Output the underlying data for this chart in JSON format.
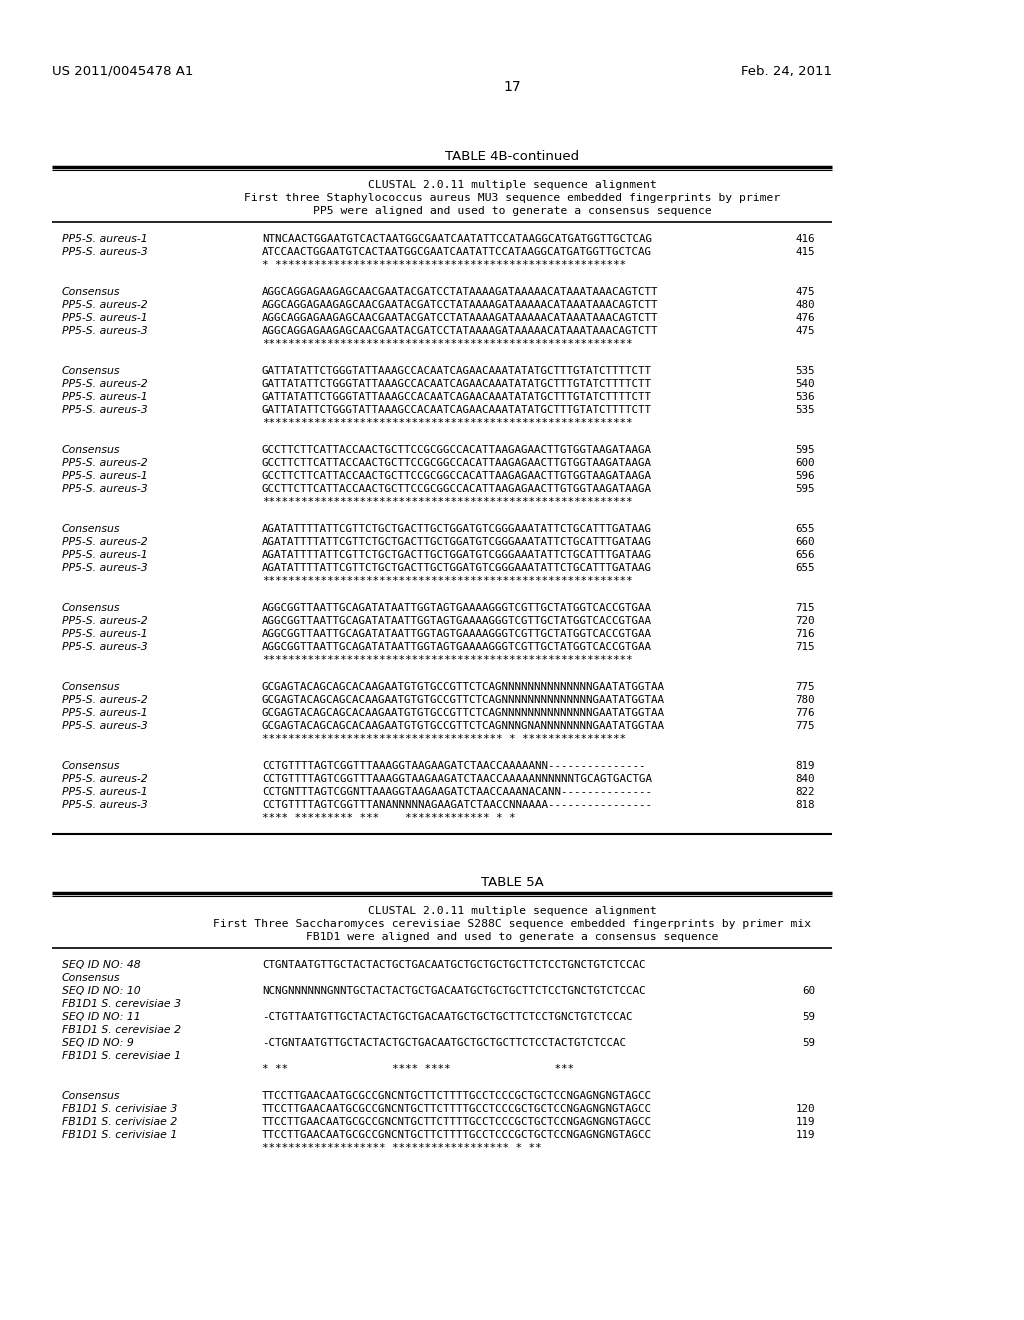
{
  "background_color": "#ffffff",
  "patent_left": "US 2011/0045478 A1",
  "patent_right": "Feb. 24, 2011",
  "page_number": "17",
  "table4b_title": "TABLE 4B-continued",
  "table4b_intro": [
    "CLUSTAL 2.0.11 multiple sequence alignment",
    "First three Staphylococcus aureus MU3 sequence embedded fingerprints by primer",
    "PP5 were aligned and used to generate a consensus sequence"
  ],
  "table5a_title": "TABLE 5A",
  "table5a_intro": [
    "CLUSTAL 2.0.11 multiple sequence alignment",
    "First Three Saccharomyces cerevisiae S288C sequence embedded fingerprints by primer mix",
    "FB1D1 were aligned and used to generate a consensus sequence"
  ],
  "table4b_blocks": [
    [
      [
        "PP5-S. aureus-1",
        "NTNCAACTGGAATGTCACTAATGGCGAATCAATATTCCATAAGGCATGATGGTTGCTCAG",
        "416"
      ],
      [
        "PP5-S. aureus-3",
        "ATCCAACTGGAATGTCACTAATGGCGAATCAATATTCCATAAGGCATGATGGTTGCTCAG",
        "415"
      ],
      [
        "",
        "* ******************************************************",
        ""
      ]
    ],
    [
      [
        "Consensus",
        "AGGCAGGAGAAGAGCAACGAATACGATCCTATAAAAGATAAAAACATAAATAAACAGTCTT",
        "475"
      ],
      [
        "PP5-S. aureus-2",
        "AGGCAGGAGAAGAGCAACGAATACGATCCTATAAAAGATAAAAACATAAATAAACAGTCTT",
        "480"
      ],
      [
        "PP5-S. aureus-1",
        "AGGCAGGAGAAGAGCAACGAATACGATCCTATAAAAGATAAAAACATAAATAAACAGTCTT",
        "476"
      ],
      [
        "PP5-S. aureus-3",
        "AGGCAGGAGAAGAGCAACGAATACGATCCTATAAAAGATAAAAACATAAATAAACAGTCTT",
        "475"
      ],
      [
        "",
        "*********************************************************",
        ""
      ]
    ],
    [
      [
        "Consensus",
        "GATTATATTCTGGGTATTAAAGCCACAATCAGAACAAATATATGCTTTGTATCTTTTCTT",
        "535"
      ],
      [
        "PP5-S. aureus-2",
        "GATTATATTCTGGGTATTAAAGCCACAATCAGAACAAATATATGCTTTGTATCTTTTCTT",
        "540"
      ],
      [
        "PP5-S. aureus-1",
        "GATTATATTCTGGGTATTAAAGCCACAATCAGAACAAATATATGCTTTGTATCTTTTCTT",
        "536"
      ],
      [
        "PP5-S. aureus-3",
        "GATTATATTCTGGGTATTAAAGCCACAATCAGAACAAATATATGCTTTGTATCTTTTCTT",
        "535"
      ],
      [
        "",
        "*********************************************************",
        ""
      ]
    ],
    [
      [
        "Consensus",
        "GCCTTCTTCATTACCAACTGCTTCCGCGGCCACATTAAGAGAACTTGTGGTAAGATAAGA",
        "595"
      ],
      [
        "PP5-S. aureus-2",
        "GCCTTCTTCATTACCAACTGCTTCCGCGGCCACATTAAGAGAACTTGTGGTAAGATAAGA",
        "600"
      ],
      [
        "PP5-S. aureus-1",
        "GCCTTCTTCATTACCAACTGCTTCCGCGGCCACATTAAGAGAACTTGTGGTAAGATAAGA",
        "596"
      ],
      [
        "PP5-S. aureus-3",
        "GCCTTCTTCATTACCAACTGCTTCCGCGGCCACATTAAGAGAACTTGTGGTAAGATAAGA",
        "595"
      ],
      [
        "",
        "*********************************************************",
        ""
      ]
    ],
    [
      [
        "Consensus",
        "AGATATTTTATTCGTTCTGCTGACTTGCTGGATGTCGGGAAATATTCTGCATTTGATAAG",
        "655"
      ],
      [
        "PP5-S. aureus-2",
        "AGATATTTTATTCGTTCTGCTGACTTGCTGGATGTCGGGAAATATTCTGCATTTGATAAG",
        "660"
      ],
      [
        "PP5-S. aureus-1",
        "AGATATTTTATTCGTTCTGCTGACTTGCTGGATGTCGGGAAATATTCTGCATTTGATAAG",
        "656"
      ],
      [
        "PP5-S. aureus-3",
        "AGATATTTTATTCGTTCTGCTGACTTGCTGGATGTCGGGAAATATTCTGCATTTGATAAG",
        "655"
      ],
      [
        "",
        "*********************************************************",
        ""
      ]
    ],
    [
      [
        "Consensus",
        "AGGCGGTTAATTGCAGATATAATTGGTAGTGAAAAGGGTCGTTGCTATGGTCACCGTGAA",
        "715"
      ],
      [
        "PP5-S. aureus-2",
        "AGGCGGTTAATTGCAGATATAATTGGTAGTGAAAAGGGTCGTTGCTATGGTCACCGTGAA",
        "720"
      ],
      [
        "PP5-S. aureus-1",
        "AGGCGGTTAATTGCAGATATAATTGGTAGTGAAAAGGGTCGTTGCTATGGTCACCGTGAA",
        "716"
      ],
      [
        "PP5-S. aureus-3",
        "AGGCGGTTAATTGCAGATATAATTGGTAGTGAAAAGGGTCGTTGCTATGGTCACCGTGAA",
        "715"
      ],
      [
        "",
        "*********************************************************",
        ""
      ]
    ],
    [
      [
        "Consensus",
        "GCGAGTACAGCAGCACAAGAATGTGTGCCGTTCTCAGNNNNNNNNNNNNNNGAATATGGTAA",
        "775"
      ],
      [
        "PP5-S. aureus-2",
        "GCGAGTACAGCAGCACAAGAATGTGTGCCGTTCTCAGNNNNNNNNNNNNNNGAATATGGTAA",
        "780"
      ],
      [
        "PP5-S. aureus-1",
        "GCGAGTACAGCAGCACAAGAATGTGTGCCGTTCTCAGNNNNNNNNNNNNNNGAATATGGTAA",
        "776"
      ],
      [
        "PP5-S. aureus-3",
        "GCGAGTACAGCAGCACAAGAATGTGTGCCGTTCTCAGNNNGNANNNNNNNNGAATATGGTAA",
        "775"
      ],
      [
        "",
        "************************************* * ****************",
        ""
      ]
    ],
    [
      [
        "Consensus",
        "CCTGTTTTAGTCGGTTTAAAGGTAAGAAGATCTAACCAAAAANN---------------",
        "819"
      ],
      [
        "PP5-S. aureus-2",
        "CCTGTTTTAGTCGGTTTAAAGGTAAGAAGATCTAACCAAAAANNNNNNTGCAGTGACTGA",
        "840"
      ],
      [
        "PP5-S. aureus-1",
        "CCTGNTTTAGTCGGNTTAAAGGTAAGAAGATCTAACCAAANACANN--------------",
        "822"
      ],
      [
        "PP5-S. aureus-3",
        "CCTGTTTTAGTCGGTTTANANNNNNAGAAGATCTAACCNNAAAA----------------",
        "818"
      ],
      [
        "",
        "**** ********* ***    ************* * *",
        ""
      ]
    ]
  ],
  "table5a_blocks": [
    [
      [
        "SEQ ID NO: 48",
        "CTGNTAATGTTGCTACTACTGCTGACAATGCTGCTGCTGCTTCTCCTGNCTGTCTCCAC",
        ""
      ],
      [
        "Consensus",
        "",
        ""
      ],
      [
        "SEQ ID NO: 10",
        "NCNGNNNNNNGNNTGCTACTACTGCTGACAATGCTGCTGCTTCTCCTGNCTGTCTCCAC",
        "60"
      ],
      [
        "FB1D1 S. cerevisiae 3",
        "",
        ""
      ],
      [
        "SEQ ID NO: 11",
        "-CTGTTAATGTTGCTACTACTGCTGACAATGCTGCTGCTTCTCCTGNCTGTCTCCAC",
        "59"
      ],
      [
        "FB1D1 S. cerevisiae 2",
        "",
        ""
      ],
      [
        "SEQ ID NO: 9",
        "-CTGNTAATGTTGCTACTACTGCTGACAATGCTGCTGCTTCTCCTACTGTCTCCAC",
        "59"
      ],
      [
        "FB1D1 S. cerevisiae 1",
        "",
        ""
      ],
      [
        "",
        "* **                **** ****                ***",
        ""
      ]
    ],
    [
      [
        "Consensus",
        "TTCCTTGAACAATGCGCCGNCNTGCTTCTTTTGCCTCCCGCTGCTCCNGAGNGNGTAGCC",
        ""
      ],
      [
        "FB1D1 S. cerivisiae 3",
        "TTCCTTGAACAATGCGCCGNCNTGCTTCTTTTGCCTCCCGCTGCTCCNGAGNGNGTAGCC",
        "120"
      ],
      [
        "FB1D1 S. cerivisiae 2",
        "TTCCTTGAACAATGCGCCGNCNTGCTTCTTTTGCCTCCCGCTGCTCCNGAGNGNGTAGCC",
        "119"
      ],
      [
        "FB1D1 S. cerivisiae 1",
        "TTCCTTGAACAATGCGCCGNCNTGCTTCTTTTGCCTCCCGCTGCTCCNGAGNGNGTAGCC",
        "119"
      ],
      [
        "",
        "******************* ****************** * **",
        ""
      ]
    ]
  ]
}
